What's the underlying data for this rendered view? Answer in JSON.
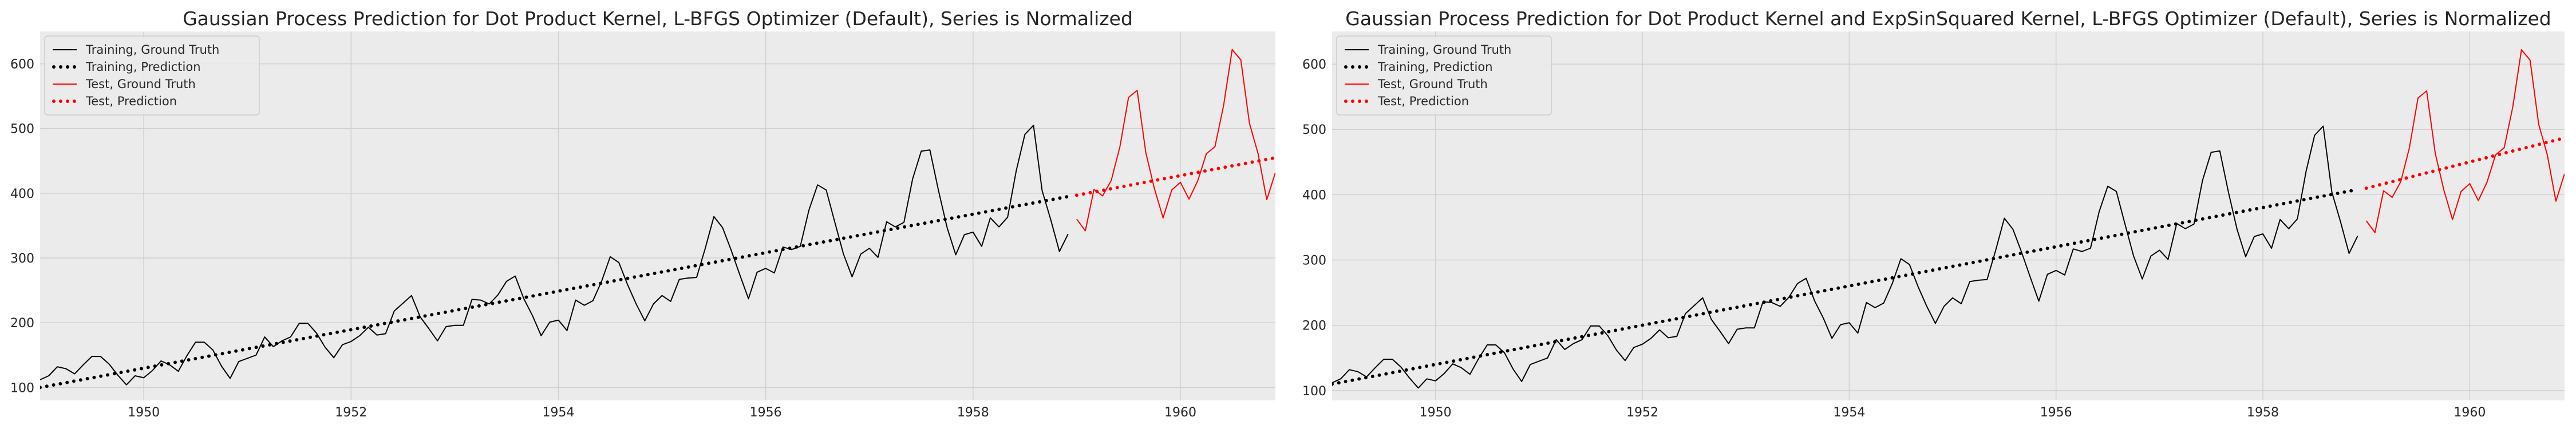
{
  "chart_data": [
    {
      "type": "line",
      "title": "Gaussian Process Prediction for Dot Product Kernel, L-BFGS Optimizer (Default), Series is Normalized",
      "xlabel": "",
      "ylabel": "",
      "xlim": [
        1949.0,
        1960.9167
      ],
      "ylim": [
        80,
        650
      ],
      "x_ticks": [
        "1950",
        "1952",
        "1954",
        "1956",
        "1958",
        "1960"
      ],
      "y_ticks": [
        "100",
        "200",
        "300",
        "400",
        "500",
        "600"
      ],
      "grid": true,
      "legend_position": "upper left",
      "legend": [
        "Training, Ground Truth",
        "Training, Prediction",
        "Test, Ground Truth",
        "Test, Prediction"
      ],
      "colors": {
        "training_truth": "#000000",
        "training_prediction": "#000000",
        "test_truth": "#ff0000",
        "test_prediction": "#ff0000",
        "background": "#ebebeb",
        "grid": "#d0d0d0"
      },
      "series": [
        {
          "name": "Training, Ground Truth",
          "style": "solid",
          "x_start": "1949-01",
          "x_end": "1958-12",
          "frequency": "monthly",
          "values": [
            112,
            118,
            132,
            129,
            121,
            135,
            148,
            148,
            136,
            119,
            104,
            118,
            115,
            126,
            141,
            135,
            125,
            149,
            170,
            170,
            158,
            133,
            114,
            140,
            145,
            150,
            178,
            163,
            172,
            178,
            199,
            199,
            184,
            162,
            146,
            166,
            171,
            180,
            193,
            181,
            183,
            218,
            230,
            242,
            209,
            191,
            172,
            194,
            196,
            196,
            236,
            235,
            229,
            243,
            264,
            272,
            237,
            211,
            180,
            201,
            204,
            188,
            235,
            227,
            234,
            264,
            302,
            293,
            259,
            229,
            203,
            229,
            242,
            233,
            267,
            269,
            270,
            315,
            364,
            347,
            312,
            274,
            237,
            278,
            284,
            277,
            317,
            313,
            318,
            374,
            413,
            405,
            355,
            306,
            271,
            306,
            315,
            301,
            356,
            348,
            355,
            422,
            465,
            467,
            404,
            347,
            305,
            336,
            340,
            318,
            362,
            348,
            363,
            435,
            491,
            505,
            404,
            359,
            310,
            337
          ]
        },
        {
          "name": "Training, Prediction",
          "style": "dotted",
          "x": [
            1949.0,
            1958.9167
          ],
          "y": [
            100,
            395
          ]
        },
        {
          "name": "Test, Ground Truth",
          "style": "solid",
          "x_start": "1959-01",
          "x_end": "1960-12",
          "frequency": "monthly",
          "values": [
            360,
            342,
            406,
            396,
            420,
            472,
            548,
            559,
            463,
            407,
            362,
            405,
            417,
            391,
            419,
            461,
            472,
            535,
            622,
            606,
            508,
            461,
            390,
            432
          ]
        },
        {
          "name": "Test, Prediction",
          "style": "dotted",
          "x": [
            1959.0,
            1960.9167
          ],
          "y": [
            397,
            455
          ]
        }
      ]
    },
    {
      "type": "line",
      "title": "Gaussian Process Prediction for Dot Product Kernel and ExpSinSquared Kernel, L-BFGS Optimizer (Default), Series is Normalized",
      "xlabel": "",
      "ylabel": "",
      "xlim": [
        1949.0,
        1960.9167
      ],
      "ylim": [
        85,
        650
      ],
      "x_ticks": [
        "1950",
        "1952",
        "1954",
        "1956",
        "1958",
        "1960"
      ],
      "y_ticks": [
        "100",
        "200",
        "300",
        "400",
        "500",
        "600"
      ],
      "grid": true,
      "legend_position": "upper left",
      "legend": [
        "Training, Ground Truth",
        "Training, Prediction",
        "Test, Ground Truth",
        "Test, Prediction"
      ],
      "colors": {
        "training_truth": "#000000",
        "training_prediction": "#000000",
        "test_truth": "#ff0000",
        "test_prediction": "#ff0000",
        "background": "#ebebeb",
        "grid": "#d0d0d0"
      },
      "series": [
        {
          "name": "Training, Ground Truth",
          "style": "solid",
          "x_start": "1949-01",
          "x_end": "1958-12",
          "frequency": "monthly",
          "values": [
            112,
            118,
            132,
            129,
            121,
            135,
            148,
            148,
            136,
            119,
            104,
            118,
            115,
            126,
            141,
            135,
            125,
            149,
            170,
            170,
            158,
            133,
            114,
            140,
            145,
            150,
            178,
            163,
            172,
            178,
            199,
            199,
            184,
            162,
            146,
            166,
            171,
            180,
            193,
            181,
            183,
            218,
            230,
            242,
            209,
            191,
            172,
            194,
            196,
            196,
            236,
            235,
            229,
            243,
            264,
            272,
            237,
            211,
            180,
            201,
            204,
            188,
            235,
            227,
            234,
            264,
            302,
            293,
            259,
            229,
            203,
            229,
            242,
            233,
            267,
            269,
            270,
            315,
            364,
            347,
            312,
            274,
            237,
            278,
            284,
            277,
            317,
            313,
            318,
            374,
            413,
            405,
            355,
            306,
            271,
            306,
            315,
            301,
            356,
            348,
            355,
            422,
            465,
            467,
            404,
            347,
            305,
            336,
            340,
            318,
            362,
            348,
            363,
            435,
            491,
            505,
            404,
            359,
            310,
            337
          ]
        },
        {
          "name": "Training, Prediction",
          "style": "dotted",
          "x": [
            1949.0,
            1958.9167
          ],
          "y": [
            110,
            408
          ]
        },
        {
          "name": "Test, Ground Truth",
          "style": "solid",
          "x_start": "1959-01",
          "x_end": "1960-12",
          "frequency": "monthly",
          "values": [
            360,
            342,
            406,
            396,
            420,
            472,
            548,
            559,
            463,
            407,
            362,
            405,
            417,
            391,
            419,
            461,
            472,
            535,
            622,
            606,
            508,
            461,
            390,
            432
          ]
        },
        {
          "name": "Test, Prediction",
          "style": "dotted",
          "x": [
            1959.0,
            1960.9167
          ],
          "y": [
            410,
            487
          ]
        }
      ]
    }
  ]
}
